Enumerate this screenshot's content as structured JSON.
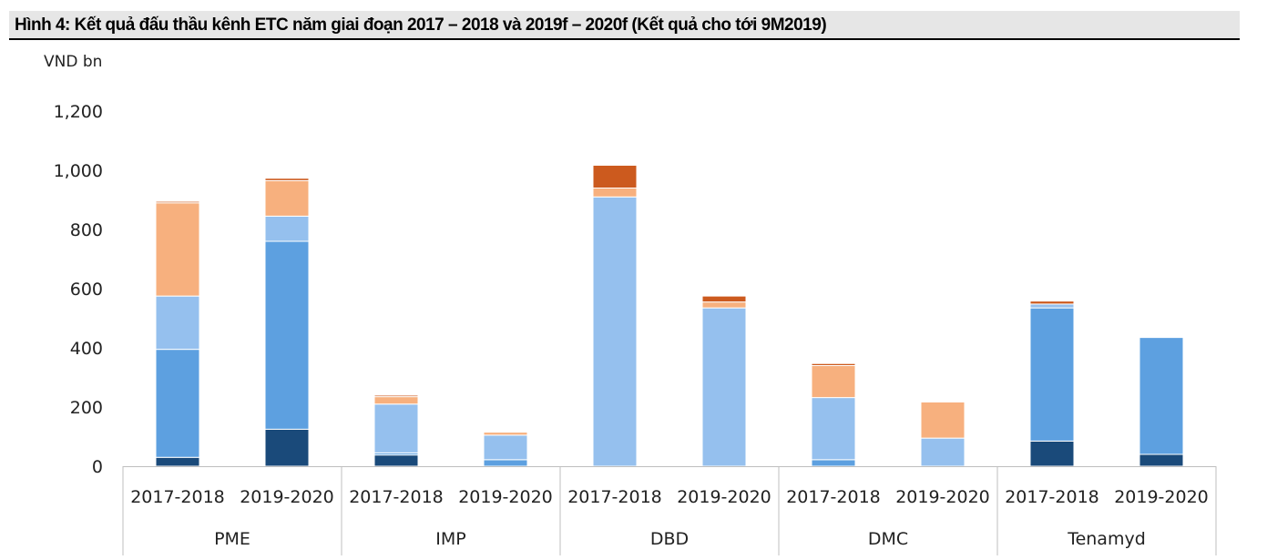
{
  "figure": {
    "title": "Hình 4: Kết quả đấu thầu kênh ETC năm giai đoạn 2017 – 2018 và 2019f – 2020f (Kết quả cho tới 9M2019)"
  },
  "chart_data": {
    "type": "bar",
    "stacked": true,
    "title": "",
    "ylabel": "VND bn",
    "xlabel": "",
    "ylim": [
      0,
      1200
    ],
    "yticks": [
      "0",
      "200",
      "400",
      "600",
      "800",
      "1,000",
      "1,200"
    ],
    "grid": false,
    "legend": "none",
    "categories": [
      "2017-2018",
      "2019-2020",
      "2017-2018",
      "2019-2020",
      "2017-2018",
      "2019-2020",
      "2017-2018",
      "2019-2020",
      "2017-2018",
      "2019-2020"
    ],
    "groups": [
      {
        "label": "PME",
        "categories": [
          "2017-2018",
          "2019-2020"
        ]
      },
      {
        "label": "IMP",
        "categories": [
          "2017-2018",
          "2019-2020"
        ]
      },
      {
        "label": "DBD",
        "categories": [
          "2017-2018",
          "2019-2020"
        ]
      },
      {
        "label": "DMC",
        "categories": [
          "2017-2018",
          "2019-2020"
        ]
      },
      {
        "label": "Tenamyd",
        "categories": [
          "2017-2018",
          "2019-2020"
        ]
      }
    ],
    "series": [
      {
        "color": "#1a4a7a",
        "values": [
          30,
          125,
          38,
          0,
          0,
          0,
          0,
          0,
          85,
          40
        ]
      },
      {
        "color": "#5da0e0",
        "values": [
          365,
          635,
          7,
          22,
          0,
          0,
          22,
          0,
          450,
          395
        ]
      },
      {
        "color": "#95c0ee",
        "values": [
          180,
          85,
          165,
          83,
          910,
          535,
          210,
          95,
          13,
          0
        ]
      },
      {
        "color": "#f7b07e",
        "values": [
          315,
          120,
          25,
          10,
          30,
          20,
          108,
          122,
          0,
          0
        ]
      },
      {
        "color": "#cc5a1e",
        "values": [
          5,
          8,
          5,
          0,
          77,
          20,
          7,
          0,
          10,
          0
        ]
      }
    ]
  }
}
